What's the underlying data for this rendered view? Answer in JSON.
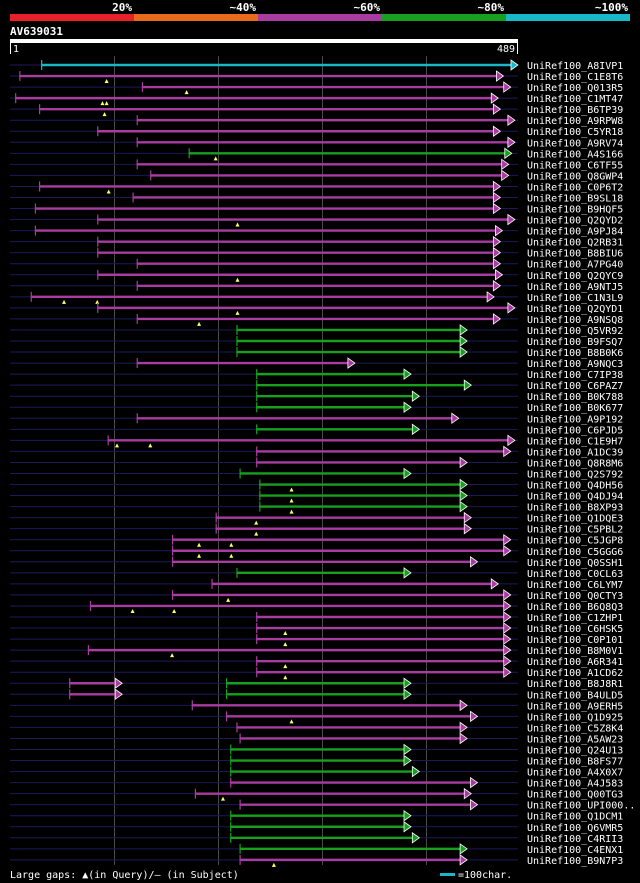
{
  "legend": {
    "segments": [
      {
        "label": "20%",
        "color": "#e8202a"
      },
      {
        "label": "~40%",
        "color": "#e86a1a"
      },
      {
        "label": "~60%",
        "color": "#a83ca0"
      },
      {
        "label": "~80%",
        "color": "#16a01e"
      },
      {
        "label": "~100%",
        "color": "#18b8c8"
      }
    ]
  },
  "query": {
    "name": "AV639031",
    "start": "1",
    "end": "489",
    "length": 489
  },
  "footer": {
    "text": "Large gaps: ▲(in Query)/– (in Subject)",
    "scale_label": "=100char.",
    "scale_color": "#18b8c8"
  },
  "colors": {
    "background": "#000000",
    "grid": "#4a4a4a",
    "row_line": "#1a1a5a",
    "label": "#ffffff",
    "marker": "#ffff66"
  },
  "hits": [
    {
      "name": "UniRef100_A8IVP1",
      "start": 30,
      "end": 489,
      "color": "#18b8c8",
      "query_gaps": []
    },
    {
      "name": "UniRef100_C1E8T6",
      "start": 9,
      "end": 475,
      "color": "#a83ca0",
      "query_gaps": [
        93
      ]
    },
    {
      "name": "UniRef100_Q013R5",
      "start": 127,
      "end": 482,
      "color": "#a83ca0",
      "query_gaps": [
        170
      ]
    },
    {
      "name": "UniRef100_C1MT47",
      "start": 5,
      "end": 470,
      "color": "#a83ca0",
      "query_gaps": [
        89,
        93
      ]
    },
    {
      "name": "UniRef100_B6TP39",
      "start": 28,
      "end": 472,
      "color": "#a83ca0",
      "query_gaps": [
        91
      ]
    },
    {
      "name": "UniRef100_A9RPW8",
      "start": 122,
      "end": 486,
      "color": "#a83ca0",
      "query_gaps": []
    },
    {
      "name": "UniRef100_C5YR18",
      "start": 84,
      "end": 472,
      "color": "#a83ca0",
      "query_gaps": []
    },
    {
      "name": "UniRef100_A9RV74",
      "start": 122,
      "end": 486,
      "color": "#a83ca0",
      "query_gaps": []
    },
    {
      "name": "UniRef100_A4S166",
      "start": 172,
      "end": 483,
      "color": "#16a01e",
      "query_gaps": [
        198
      ]
    },
    {
      "name": "UniRef100_C6TF55",
      "start": 122,
      "end": 480,
      "color": "#a83ca0",
      "query_gaps": []
    },
    {
      "name": "UniRef100_Q8GWP4",
      "start": 135,
      "end": 480,
      "color": "#a83ca0",
      "query_gaps": []
    },
    {
      "name": "UniRef100_C0P6T2",
      "start": 28,
      "end": 472,
      "color": "#a83ca0",
      "query_gaps": [
        95
      ]
    },
    {
      "name": "UniRef100_B9SL18",
      "start": 118,
      "end": 472,
      "color": "#a83ca0",
      "query_gaps": []
    },
    {
      "name": "UniRef100_B9HQF5",
      "start": 24,
      "end": 472,
      "color": "#a83ca0",
      "query_gaps": []
    },
    {
      "name": "UniRef100_Q2QYD2",
      "start": 84,
      "end": 486,
      "color": "#a83ca0",
      "query_gaps": [
        219
      ]
    },
    {
      "name": "UniRef100_A9PJ84",
      "start": 24,
      "end": 474,
      "color": "#a83ca0",
      "query_gaps": []
    },
    {
      "name": "UniRef100_Q2RB31",
      "start": 84,
      "end": 472,
      "color": "#a83ca0",
      "query_gaps": []
    },
    {
      "name": "UniRef100_B8BIU6",
      "start": 84,
      "end": 472,
      "color": "#a83ca0",
      "query_gaps": []
    },
    {
      "name": "UniRef100_A7PG40",
      "start": 122,
      "end": 472,
      "color": "#a83ca0",
      "query_gaps": []
    },
    {
      "name": "UniRef100_Q2QYC9",
      "start": 84,
      "end": 474,
      "color": "#a83ca0",
      "query_gaps": [
        219
      ]
    },
    {
      "name": "UniRef100_A9NTJ5",
      "start": 122,
      "end": 472,
      "color": "#a83ca0",
      "query_gaps": []
    },
    {
      "name": "UniRef100_C1N3L9",
      "start": 20,
      "end": 466,
      "color": "#a83ca0",
      "query_gaps": [
        52,
        84
      ]
    },
    {
      "name": "UniRef100_Q2QYD1",
      "start": 84,
      "end": 486,
      "color": "#a83ca0",
      "query_gaps": [
        219
      ]
    },
    {
      "name": "UniRef100_A9NSQ8",
      "start": 122,
      "end": 472,
      "color": "#a83ca0",
      "query_gaps": [
        182
      ]
    },
    {
      "name": "UniRef100_Q5VR92",
      "start": 218,
      "end": 440,
      "color": "#16a01e",
      "query_gaps": []
    },
    {
      "name": "UniRef100_B9FSQ7",
      "start": 218,
      "end": 440,
      "color": "#16a01e",
      "query_gaps": []
    },
    {
      "name": "UniRef100_B8B0K6",
      "start": 218,
      "end": 440,
      "color": "#16a01e",
      "query_gaps": []
    },
    {
      "name": "UniRef100_A9NQC3",
      "start": 122,
      "end": 332,
      "color": "#a83ca0",
      "query_gaps": []
    },
    {
      "name": "UniRef100_C7IP38",
      "start": 237,
      "end": 386,
      "color": "#16a01e",
      "query_gaps": []
    },
    {
      "name": "UniRef100_C6PAZ7",
      "start": 237,
      "end": 444,
      "color": "#16a01e",
      "query_gaps": []
    },
    {
      "name": "UniRef100_B0K788",
      "start": 237,
      "end": 394,
      "color": "#16a01e",
      "query_gaps": []
    },
    {
      "name": "UniRef100_B0K677",
      "start": 237,
      "end": 386,
      "color": "#16a01e",
      "query_gaps": []
    },
    {
      "name": "UniRef100_A9P192",
      "start": 122,
      "end": 432,
      "color": "#a83ca0",
      "query_gaps": []
    },
    {
      "name": "UniRef100_C6PJD5",
      "start": 237,
      "end": 394,
      "color": "#16a01e",
      "query_gaps": []
    },
    {
      "name": "UniRef100_C1E9H7",
      "start": 94,
      "end": 486,
      "color": "#a83ca0",
      "query_gaps": [
        103,
        135
      ]
    },
    {
      "name": "UniRef100_A1DC39",
      "start": 237,
      "end": 482,
      "color": "#a83ca0",
      "query_gaps": []
    },
    {
      "name": "UniRef100_Q8R8M6",
      "start": 237,
      "end": 440,
      "color": "#a83ca0",
      "query_gaps": []
    },
    {
      "name": "UniRef100_Q2S792",
      "start": 221,
      "end": 386,
      "color": "#16a01e",
      "query_gaps": []
    },
    {
      "name": "UniRef100_Q4DH56",
      "start": 240,
      "end": 440,
      "color": "#16a01e",
      "query_gaps": [
        271
      ]
    },
    {
      "name": "UniRef100_Q4DJ94",
      "start": 240,
      "end": 440,
      "color": "#16a01e",
      "query_gaps": [
        271
      ]
    },
    {
      "name": "UniRef100_B8XP93",
      "start": 240,
      "end": 440,
      "color": "#16a01e",
      "query_gaps": [
        271
      ]
    },
    {
      "name": "UniRef100_Q1DQE3",
      "start": 198,
      "end": 444,
      "color": "#a83ca0",
      "query_gaps": [
        237
      ]
    },
    {
      "name": "UniRef100_C5PBL2",
      "start": 198,
      "end": 444,
      "color": "#a83ca0",
      "query_gaps": [
        237
      ]
    },
    {
      "name": "UniRef100_C5JGP8",
      "start": 156,
      "end": 482,
      "color": "#a83ca0",
      "query_gaps": [
        182,
        213
      ]
    },
    {
      "name": "UniRef100_C5GGG6",
      "start": 156,
      "end": 482,
      "color": "#a83ca0",
      "query_gaps": [
        182,
        213
      ]
    },
    {
      "name": "UniRef100_Q0SSH1",
      "start": 156,
      "end": 450,
      "color": "#a83ca0",
      "query_gaps": []
    },
    {
      "name": "UniRef100_C0CL63",
      "start": 218,
      "end": 386,
      "color": "#16a01e",
      "query_gaps": []
    },
    {
      "name": "UniRef100_C6LYM7",
      "start": 194,
      "end": 470,
      "color": "#a83ca0",
      "query_gaps": []
    },
    {
      "name": "UniRef100_Q0CTY3",
      "start": 156,
      "end": 482,
      "color": "#a83ca0",
      "query_gaps": [
        210
      ]
    },
    {
      "name": "UniRef100_B6Q8Q3",
      "start": 77,
      "end": 482,
      "color": "#a83ca0",
      "query_gaps": [
        118,
        158
      ]
    },
    {
      "name": "UniRef100_C1ZHP1",
      "start": 237,
      "end": 482,
      "color": "#a83ca0",
      "query_gaps": []
    },
    {
      "name": "UniRef100_C6HSK5",
      "start": 237,
      "end": 482,
      "color": "#a83ca0",
      "query_gaps": [
        265
      ]
    },
    {
      "name": "UniRef100_C0P101",
      "start": 237,
      "end": 482,
      "color": "#a83ca0",
      "query_gaps": [
        265
      ]
    },
    {
      "name": "UniRef100_B8M0V1",
      "start": 75,
      "end": 482,
      "color": "#a83ca0",
      "query_gaps": [
        156
      ]
    },
    {
      "name": "UniRef100_A6R341",
      "start": 237,
      "end": 482,
      "color": "#a83ca0",
      "query_gaps": [
        265
      ]
    },
    {
      "name": "UniRef100_A1CD62",
      "start": 237,
      "end": 482,
      "color": "#a83ca0",
      "query_gaps": [
        265
      ]
    },
    {
      "name": "UniRef100_B8J8R1",
      "start": 57,
      "end": 108,
      "color": "#a83ca0",
      "query_gaps": [],
      "extra": {
        "start": 208,
        "end": 386,
        "color": "#16a01e"
      }
    },
    {
      "name": "UniRef100_B4ULD5",
      "start": 57,
      "end": 108,
      "color": "#a83ca0",
      "query_gaps": [],
      "extra": {
        "start": 208,
        "end": 386,
        "color": "#16a01e"
      }
    },
    {
      "name": "UniRef100_A9ERH5",
      "start": 175,
      "end": 440,
      "color": "#a83ca0",
      "query_gaps": []
    },
    {
      "name": "UniRef100_Q1D925",
      "start": 208,
      "end": 450,
      "color": "#a83ca0",
      "query_gaps": [
        271
      ]
    },
    {
      "name": "UniRef100_C5Z8K4",
      "start": 218,
      "end": 440,
      "color": "#a83ca0",
      "query_gaps": []
    },
    {
      "name": "UniRef100_A5AW23",
      "start": 221,
      "end": 440,
      "color": "#a83ca0",
      "query_gaps": []
    },
    {
      "name": "UniRef100_Q24U13",
      "start": 212,
      "end": 386,
      "color": "#16a01e",
      "query_gaps": []
    },
    {
      "name": "UniRef100_B8FS77",
      "start": 212,
      "end": 386,
      "color": "#16a01e",
      "query_gaps": []
    },
    {
      "name": "UniRef100_A4X0X7",
      "start": 212,
      "end": 394,
      "color": "#16a01e",
      "query_gaps": []
    },
    {
      "name": "UniRef100_A4J583",
      "start": 212,
      "end": 450,
      "color": "#a83ca0",
      "query_gaps": []
    },
    {
      "name": "UniRef100_Q00TG3",
      "start": 178,
      "end": 444,
      "color": "#a83ca0",
      "query_gaps": [
        205
      ]
    },
    {
      "name": "UniRef100_UPI000..",
      "start": 221,
      "end": 450,
      "color": "#a83ca0",
      "query_gaps": []
    },
    {
      "name": "UniRef100_Q1DCM1",
      "start": 212,
      "end": 386,
      "color": "#16a01e",
      "query_gaps": []
    },
    {
      "name": "UniRef100_Q6VMR5",
      "start": 212,
      "end": 386,
      "color": "#16a01e",
      "query_gaps": []
    },
    {
      "name": "UniRef100_C4RII3",
      "start": 212,
      "end": 394,
      "color": "#16a01e",
      "query_gaps": []
    },
    {
      "name": "UniRef100_C4ENX1",
      "start": 221,
      "end": 440,
      "color": "#16a01e",
      "query_gaps": []
    },
    {
      "name": "UniRef100_B9N7P3",
      "start": 221,
      "end": 440,
      "color": "#a83ca0",
      "query_gaps": [
        254
      ]
    }
  ]
}
